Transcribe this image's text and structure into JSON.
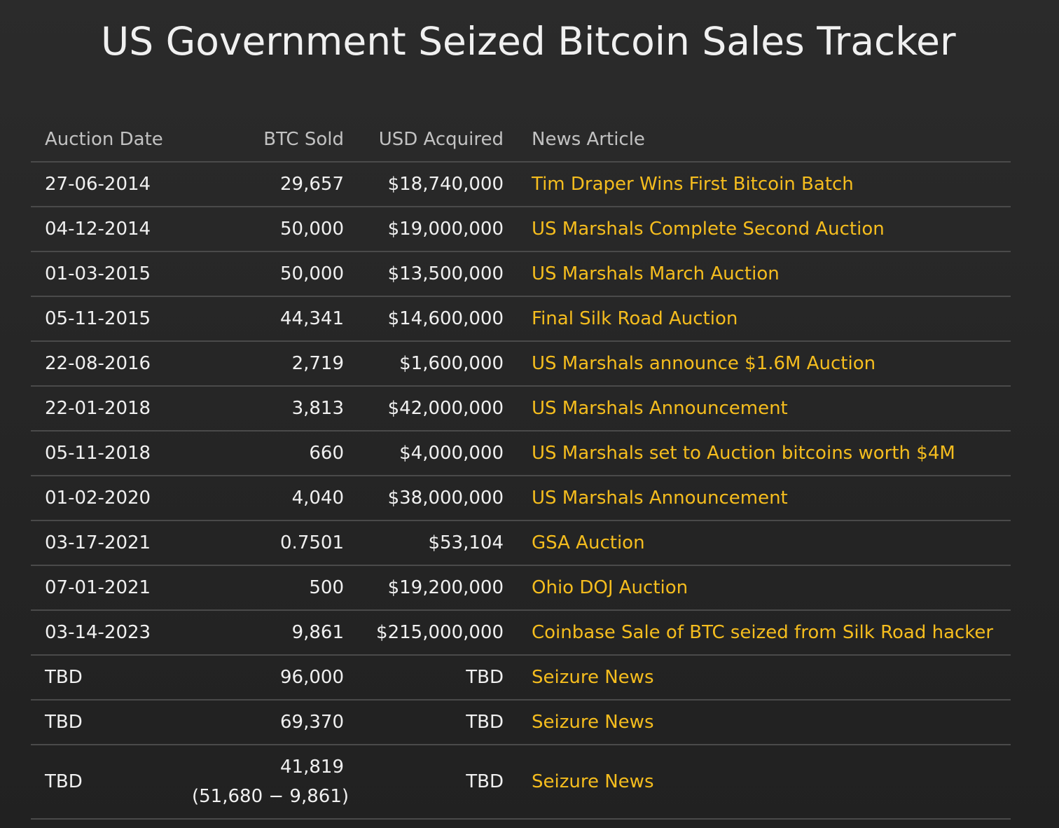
{
  "page": {
    "title": "US Government Seized Bitcoin Sales Tracker"
  },
  "table": {
    "headers": {
      "date": "Auction Date",
      "btc": "BTC Sold",
      "usd": "USD Acquired",
      "news": "News Article"
    },
    "rows": [
      {
        "date": "27-06-2014",
        "btc": "29,657",
        "usd": "$18,740,000",
        "news": "Tim Draper Wins First Bitcoin Batch"
      },
      {
        "date": "04-12-2014",
        "btc": "50,000",
        "usd": "$19,000,000",
        "news": "US Marshals Complete Second Auction"
      },
      {
        "date": "01-03-2015",
        "btc": "50,000",
        "usd": "$13,500,000",
        "news": "US Marshals March Auction"
      },
      {
        "date": "05-11-2015",
        "btc": "44,341",
        "usd": "$14,600,000",
        "news": "Final Silk Road Auction"
      },
      {
        "date": "22-08-2016",
        "btc": "2,719",
        "usd": "$1,600,000",
        "news": "US Marshals announce $1.6M Auction"
      },
      {
        "date": "22-01-2018",
        "btc": "3,813",
        "usd": "$42,000,000",
        "news": "US Marshals Announcement"
      },
      {
        "date": "05-11-2018",
        "btc": "660",
        "usd": "$4,000,000",
        "news": "US Marshals set to Auction bitcoins worth $4M"
      },
      {
        "date": "01-02-2020",
        "btc": "4,040",
        "usd": "$38,000,000",
        "news": "US Marshals Announcement"
      },
      {
        "date": "03-17-2021",
        "btc": "0.7501",
        "usd": "$53,104",
        "news": "GSA Auction"
      },
      {
        "date": "07-01-2021",
        "btc": "500",
        "usd": "$19,200,000",
        "news": "Ohio DOJ Auction"
      },
      {
        "date": "03-14-2023",
        "btc": "9,861",
        "usd": "$215,000,000",
        "news": "Coinbase Sale of BTC seized from Silk Road hacker"
      },
      {
        "date": "TBD",
        "btc": "96,000",
        "usd": "TBD",
        "news": "Seizure News"
      },
      {
        "date": "TBD",
        "btc": "69,370",
        "usd": "TBD",
        "news": "Seizure News"
      },
      {
        "date": "TBD",
        "btc": "41,819",
        "btc_note": "(51,680 − 9,861)",
        "usd": "TBD",
        "news": "Seizure News"
      }
    ]
  },
  "colors": {
    "background": "#262626",
    "text": "#f0f0f0",
    "header_text": "#c2c2c2",
    "link": "#f5bd1e",
    "row_divider": "#4a4a4a"
  }
}
